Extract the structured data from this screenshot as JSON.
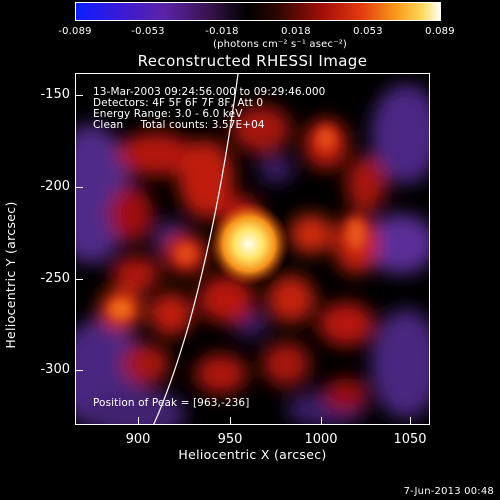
{
  "colorbar": {
    "ticks": [
      "-0.089",
      "-0.053",
      "-0.018",
      "0.018",
      "0.053",
      "0.089"
    ],
    "units_label": "(photons cm⁻² s⁻¹ asec⁻²)"
  },
  "title": "Reconstructed RHESSI Image",
  "info": {
    "line1": "13-Mar-2003 09:24:56.000 to 09:29:46.000",
    "line2": "Detectors: 4F 5F 6F 7F 8F, Att 0",
    "line3": "Energy Range: 3.0 - 6.0 keV",
    "line4": "Clean     Total counts: 3.57E+04",
    "peak": "Position of Peak = [963,-236]"
  },
  "axes": {
    "y_label": "Heliocentric  Y  (arcsec)",
    "x_label": "Heliocentric  X  (arcsec)",
    "y_ticks": [
      "-150",
      "-200",
      "-250",
      "-300"
    ],
    "x_ticks": [
      "900",
      "950",
      "1000",
      "1050"
    ],
    "x_range": [
      865,
      1065
    ],
    "y_range": [
      -330,
      -137
    ]
  },
  "footer": "7-Jun-2013 00:48",
  "colors": {
    "background": "#000000",
    "limb": "#ffffff",
    "peak": "#fffef0"
  }
}
